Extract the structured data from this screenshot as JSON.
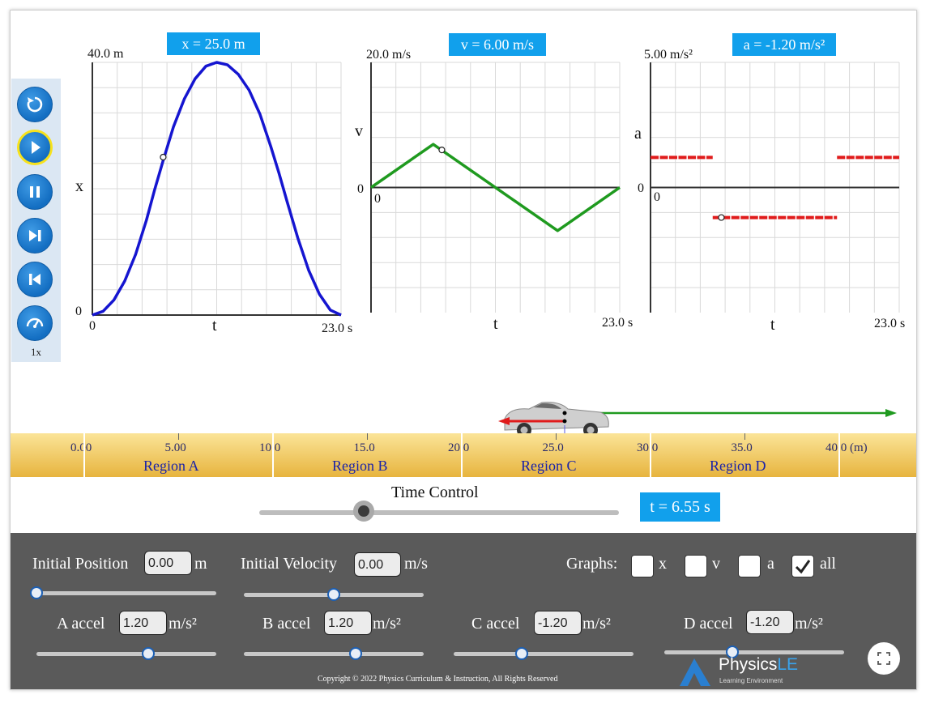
{
  "toolbar": {
    "buttons": [
      "restart-icon",
      "play-icon",
      "pause-icon",
      "step-forward-icon",
      "step-back-icon",
      "speed-icon"
    ],
    "speed_label": "1x"
  },
  "graphs": {
    "position": {
      "readout": "x = 25.0 m",
      "ymax_label": "40.0 m",
      "y_axis_label": "x",
      "y_zero_label": "0",
      "x_zero_label": "0",
      "x_axis_label": "t",
      "xmax_label": "23.0 s"
    },
    "velocity": {
      "readout": "v = 6.00 m/s",
      "ymax_label": "20.0 m/s",
      "y_axis_label": "v",
      "y_zero_label": "0",
      "x_zero_label": "0",
      "x_axis_label": "t",
      "xmax_label": "23.0 s"
    },
    "acceleration": {
      "readout": "a = -1.20 m/s²",
      "ymax_label": "5.00 m/s²",
      "y_axis_label": "a",
      "y_zero_label": "0",
      "x_zero_label": "0",
      "x_axis_label": "t",
      "xmax_label": "23.0 s"
    }
  },
  "chart_data": [
    {
      "type": "line",
      "name": "position",
      "x_range": [
        0,
        23
      ],
      "ylim": [
        0,
        40
      ],
      "line_color": "#1515d0",
      "x": [
        0,
        1,
        2,
        3,
        4,
        5,
        5.75,
        6.5,
        7.5,
        8.5,
        9.5,
        10.5,
        11.5,
        12.5,
        13.5,
        14.5,
        15.5,
        16.5,
        17.25,
        18,
        19,
        20,
        21,
        22,
        23
      ],
      "y": [
        0,
        0.6,
        2.4,
        5.4,
        9.6,
        15,
        19.8,
        24.2,
        29.8,
        34.2,
        37.4,
        39.4,
        40,
        39.6,
        38.1,
        35.6,
        31.8,
        26.7,
        22.5,
        18,
        12.2,
        7.1,
        3.3,
        0.8,
        0
      ],
      "marker": {
        "x": 6.55,
        "y": 25.0
      }
    },
    {
      "type": "line",
      "name": "velocity",
      "x_range": [
        0,
        23
      ],
      "ylim": [
        -20,
        20
      ],
      "line_color": "#1f9a1f",
      "x": [
        0,
        5.75,
        17.25,
        23
      ],
      "y": [
        0,
        6.9,
        -6.9,
        0
      ],
      "marker": {
        "x": 6.55,
        "y": 6.0
      }
    },
    {
      "type": "line",
      "name": "acceleration",
      "x_range": [
        0,
        23
      ],
      "ylim": [
        -5,
        5
      ],
      "line_color": "#e01b1b",
      "segments": [
        {
          "x": [
            0,
            5.75
          ],
          "y": [
            1.2,
            1.2
          ]
        },
        {
          "x": [
            5.75,
            17.25
          ],
          "y": [
            -1.2,
            -1.2
          ]
        },
        {
          "x": [
            17.25,
            23
          ],
          "y": [
            1.2,
            1.2
          ]
        }
      ],
      "marker": {
        "x": 6.55,
        "y": -1.2
      }
    }
  ],
  "ruler": {
    "ticks": [
      "0.00",
      "5.00",
      "10.0",
      "15.0",
      "20.0",
      "25.0",
      "30.0",
      "35.0",
      "40.0 (m)"
    ],
    "regions": [
      "Region A",
      "Region B",
      "Region C",
      "Region D"
    ]
  },
  "time_control": {
    "label": "Time Control",
    "value_display": "t = 6.55 s",
    "fraction": 0.29
  },
  "controls": {
    "initial_position": {
      "label": "Initial Position",
      "value": "0.00",
      "unit": "m",
      "fraction": 0.0
    },
    "initial_velocity": {
      "label": "Initial Velocity",
      "value": "0.00",
      "unit": "m/s",
      "fraction": 0.5
    },
    "graphs_label": "Graphs:",
    "graph_options": [
      {
        "label": "x",
        "checked": false
      },
      {
        "label": "v",
        "checked": false
      },
      {
        "label": "a",
        "checked": false
      },
      {
        "label": "all",
        "checked": true
      }
    ],
    "a_accel": {
      "label": "A accel",
      "value": "1.20",
      "unit": "m/s²",
      "fraction": 0.62
    },
    "b_accel": {
      "label": "B accel",
      "value": "1.20",
      "unit": "m/s²",
      "fraction": 0.62
    },
    "c_accel": {
      "label": "C accel",
      "value": "-1.20",
      "unit": "m/s²",
      "fraction": 0.38
    },
    "d_accel": {
      "label": "D accel",
      "value": "-1.20",
      "unit": "m/s²",
      "fraction": 0.38
    }
  },
  "copyright": "Copyright © 2022 Physics Curriculum & Instruction, All Rights Reserved",
  "logo": {
    "name": "Physics",
    "accent": "LE",
    "tagline": "Learning Environment"
  }
}
